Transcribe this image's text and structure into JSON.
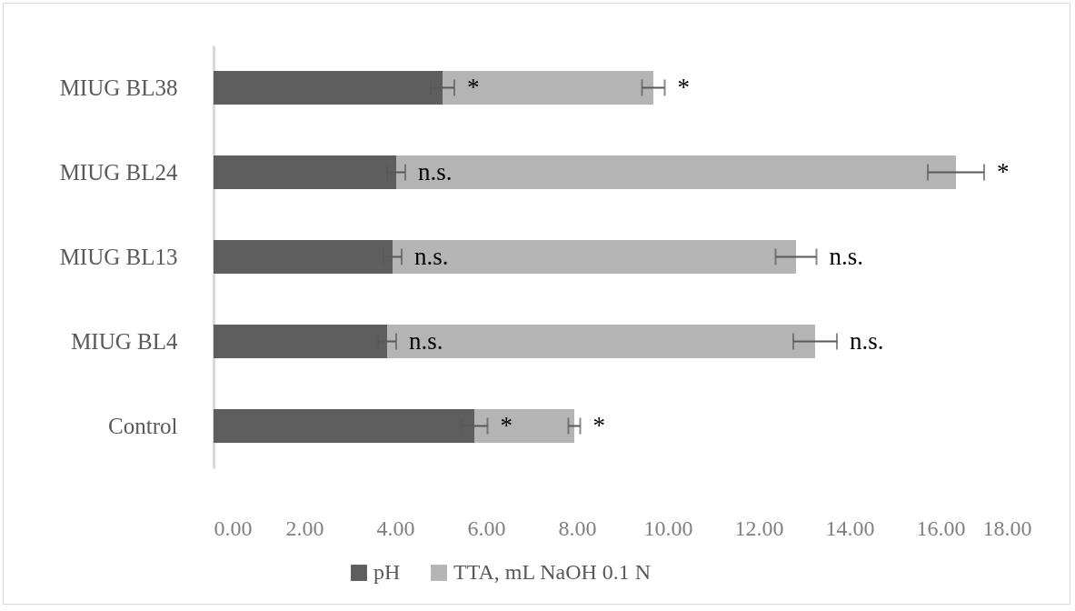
{
  "chart_data": {
    "type": "bar",
    "orientation": "horizontal",
    "stacked": true,
    "categories": [
      "MIUG BL38",
      "MIUG BL24",
      "MIUG BL13",
      "MIUG BL4",
      "Control"
    ],
    "series": [
      {
        "name": "pH",
        "color": "#5e5e5e",
        "values": [
          5.04,
          4.02,
          3.94,
          3.82,
          5.74
        ],
        "errors": [
          0.26,
          0.2,
          0.2,
          0.2,
          0.29
        ]
      },
      {
        "name": "TTA, mL NaOH 0.1 N",
        "color": "#b4b4b4",
        "values": [
          4.64,
          12.32,
          8.88,
          9.42,
          2.2
        ],
        "errors": [
          0.25,
          0.62,
          0.45,
          0.48,
          0.13
        ]
      }
    ],
    "xlim": [
      0,
      18
    ],
    "xticks": [
      {
        "value": 0,
        "label": "0.00"
      },
      {
        "value": 2,
        "label": "2.00"
      },
      {
        "value": 4,
        "label": "4.00"
      },
      {
        "value": 6,
        "label": "6.00"
      },
      {
        "value": 8,
        "label": "8.00"
      },
      {
        "value": 10,
        "label": "10.00"
      },
      {
        "value": 12,
        "label": "12.00"
      },
      {
        "value": 14,
        "label": "14.00"
      },
      {
        "value": 16,
        "label": "16.00"
      },
      {
        "value": 18,
        "label": "18.00"
      }
    ],
    "annotations": [
      {
        "text": "*",
        "x": 5.04,
        "y": "MIUG BL38"
      },
      {
        "text": "*",
        "x": 9.68,
        "y": "MIUG BL38"
      },
      {
        "text": "n.s.",
        "x": 4.02,
        "y": "MIUG BL24"
      },
      {
        "text": "*",
        "x": 16.34,
        "y": "MIUG BL24"
      },
      {
        "text": "n.s.",
        "x": 3.94,
        "y": "MIUG BL13"
      },
      {
        "text": "n.s.",
        "x": 12.82,
        "y": "MIUG BL13"
      },
      {
        "text": "n.s.",
        "x": 3.82,
        "y": "MIUG BL4"
      },
      {
        "text": "n.s.",
        "x": 13.24,
        "y": "MIUG BL4"
      },
      {
        "text": "*",
        "x": 5.74,
        "y": "Control"
      },
      {
        "text": "*",
        "x": 7.94,
        "y": "Control"
      }
    ],
    "grid": false,
    "legend": "bottom"
  }
}
